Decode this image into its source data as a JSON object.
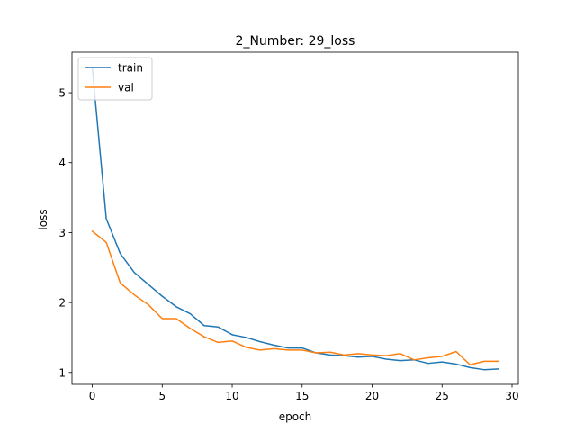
{
  "chart_data": {
    "type": "line",
    "title": "2_Number: 29_loss",
    "xlabel": "epoch",
    "ylabel": "loss",
    "xlim": [
      -1.45,
      30.45
    ],
    "ylim": [
      0.83,
      5.58
    ],
    "xticks": [
      0,
      5,
      10,
      15,
      20,
      25,
      30
    ],
    "yticks": [
      1,
      2,
      3,
      4,
      5
    ],
    "grid": false,
    "legend_position": "top-left",
    "x": [
      0,
      1,
      2,
      3,
      4,
      5,
      6,
      7,
      8,
      9,
      10,
      11,
      12,
      13,
      14,
      15,
      16,
      17,
      18,
      19,
      20,
      21,
      22,
      23,
      24,
      25,
      26,
      27,
      28,
      29
    ],
    "series": [
      {
        "name": "train",
        "color": "#1f77b4",
        "values": [
          5.36,
          3.2,
          2.7,
          2.43,
          2.26,
          2.09,
          1.94,
          1.84,
          1.67,
          1.65,
          1.54,
          1.5,
          1.44,
          1.39,
          1.35,
          1.35,
          1.28,
          1.25,
          1.24,
          1.22,
          1.23,
          1.19,
          1.17,
          1.18,
          1.13,
          1.15,
          1.12,
          1.07,
          1.04,
          1.05
        ]
      },
      {
        "name": "val",
        "color": "#ff7f0e",
        "values": [
          3.02,
          2.86,
          2.28,
          2.11,
          1.97,
          1.77,
          1.77,
          1.63,
          1.51,
          1.43,
          1.45,
          1.36,
          1.32,
          1.34,
          1.32,
          1.32,
          1.28,
          1.29,
          1.25,
          1.27,
          1.25,
          1.24,
          1.27,
          1.18,
          1.21,
          1.23,
          1.3,
          1.11,
          1.16,
          1.16
        ]
      }
    ]
  }
}
